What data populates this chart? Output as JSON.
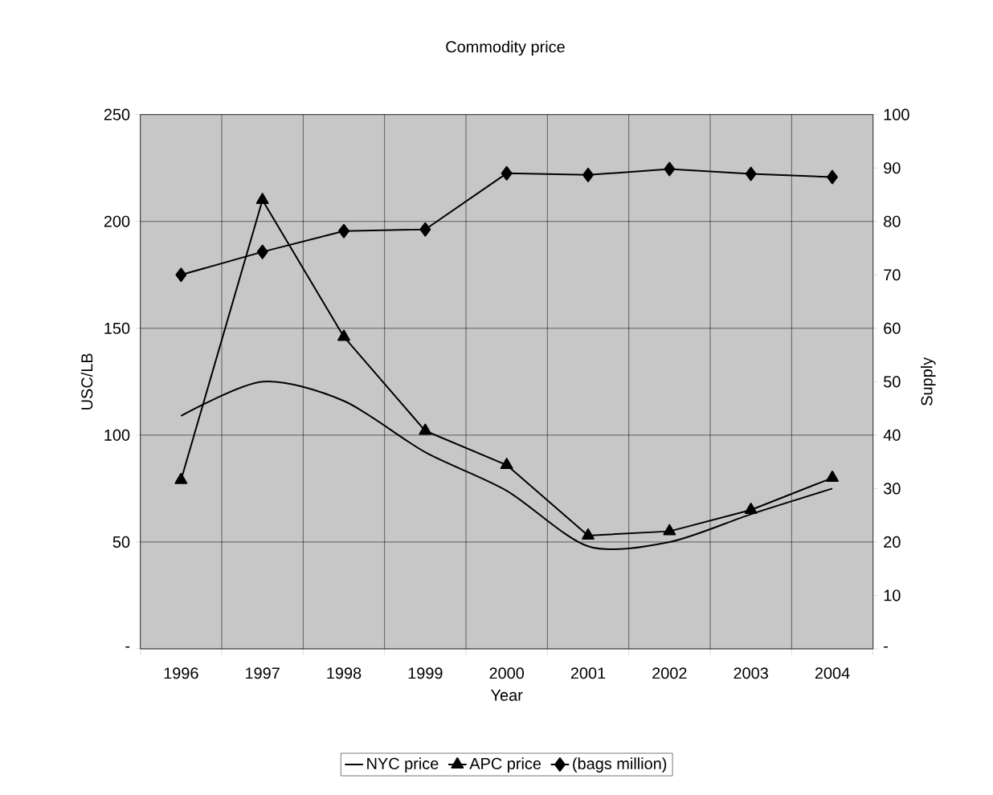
{
  "chart_data": {
    "type": "line",
    "title": "Commodity price",
    "xlabel": "Year",
    "ylabel": "USC/LB",
    "y2label": "Supply",
    "categories": [
      "1996",
      "1997",
      "1998",
      "1999",
      "2000",
      "2001",
      "2002",
      "2003",
      "2004"
    ],
    "series": [
      {
        "name": "NYC price",
        "color": "#000000",
        "marker": "none",
        "values": [
          109,
          125,
          116,
          92,
          74,
          48,
          50,
          63,
          75
        ]
      },
      {
        "name": "APC price",
        "color": "#000000",
        "marker": "triangle",
        "values": [
          79,
          210,
          146,
          102,
          86,
          53,
          55,
          65,
          80
        ]
      },
      {
        "name": "(bags million)",
        "color": "#000000",
        "marker": "diamond",
        "axis": "y2",
        "values": [
          70,
          74.3,
          78.2,
          78.5,
          89,
          88.7,
          89.8,
          88.9,
          88.3
        ]
      }
    ],
    "ylim": [
      0,
      250
    ],
    "yticks": [
      {
        "value": 0,
        "label": "-"
      },
      50,
      100,
      150,
      200,
      250
    ],
    "y2lim": [
      0,
      100
    ],
    "y2ticks": [
      {
        "value": 0,
        "label": "-"
      },
      10,
      20,
      30,
      40,
      50,
      60,
      70,
      80,
      90,
      100
    ],
    "grid": true,
    "legend": "bottom",
    "line_style": "solid"
  }
}
